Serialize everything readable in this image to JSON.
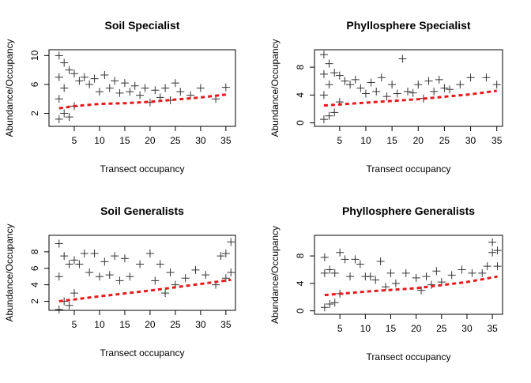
{
  "chart_data": [
    {
      "type": "scatter",
      "title": "Soil Specialist",
      "xlabel": "Transect occupancy",
      "ylabel": "Abundance/Occupancy",
      "color": "#000000",
      "x": [
        2,
        2,
        2,
        2,
        3,
        3,
        3,
        4,
        4,
        5,
        5,
        6,
        7,
        8,
        9,
        10,
        11,
        12,
        13,
        14,
        15,
        16,
        17,
        18,
        19,
        20,
        21,
        22,
        23,
        24,
        25,
        26,
        28,
        30,
        33,
        35
      ],
      "values": [
        10,
        1.2,
        7,
        4,
        9,
        2,
        5.5,
        8,
        1.5,
        7.5,
        3,
        6.5,
        7,
        6,
        6.8,
        5,
        7.3,
        5.5,
        6.5,
        4.8,
        6.2,
        5,
        5.8,
        4.5,
        5.5,
        3.5,
        5.2,
        4.2,
        5.5,
        3.8,
        6.2,
        5,
        4.5,
        5.5,
        4,
        5.6
      ],
      "trend": {
        "color": "#e41a1c",
        "x": [
          2,
          5,
          10,
          15,
          20,
          25,
          30,
          35
        ],
        "values": [
          2.7,
          3.0,
          3.3,
          3.4,
          3.6,
          3.9,
          4.2,
          4.6
        ]
      },
      "xlim": [
        0,
        36.9
      ],
      "ylim": [
        0.2,
        10.8
      ],
      "xticks": [
        5,
        10,
        15,
        20,
        25,
        30,
        35
      ],
      "yticks": [
        2,
        6,
        10
      ]
    },
    {
      "type": "scatter",
      "title": "Phyllosphere Specialist",
      "xlabel": "Transect occupancy",
      "ylabel": "Abundance/Occupancy",
      "color": "#000000",
      "x": [
        2,
        2,
        2,
        2,
        3,
        3,
        3,
        4,
        4,
        5,
        5,
        6,
        7,
        8,
        9,
        10,
        11,
        12,
        13,
        14,
        15,
        16,
        17,
        18,
        19,
        20,
        21,
        22,
        23,
        24,
        25,
        26,
        28,
        30,
        33,
        35
      ],
      "values": [
        9.8,
        0.5,
        7,
        4,
        8.5,
        1,
        5.5,
        7.2,
        1.5,
        6.8,
        3,
        6,
        5.5,
        6.2,
        5,
        4.2,
        5.8,
        4.5,
        6.5,
        3.8,
        5.5,
        4.2,
        9.2,
        4.5,
        4.3,
        5.5,
        3.5,
        6,
        4.5,
        6.2,
        5,
        4.8,
        5.5,
        6.5,
        6.5,
        5.5
      ],
      "trend": {
        "color": "#e41a1c",
        "x": [
          2,
          10,
          20,
          30,
          35
        ],
        "values": [
          2.5,
          2.9,
          3.4,
          4.1,
          4.6
        ]
      },
      "xlim": [
        0.2,
        36.1
      ],
      "ylim": [
        -0.5,
        10.5
      ],
      "xticks": [
        5,
        10,
        15,
        20,
        25,
        30,
        35
      ],
      "yticks": [
        0,
        4,
        8
      ]
    },
    {
      "type": "scatter",
      "title": "Soil Generalists",
      "xlabel": "Transect occupancy",
      "ylabel": "Abundance/Occupancy",
      "color": "#000000",
      "x": [
        2,
        2,
        2,
        3,
        3,
        4,
        4,
        5,
        5,
        6,
        7,
        8,
        9,
        10,
        11,
        12,
        13,
        14,
        15,
        16,
        18,
        20,
        21,
        22,
        23,
        24,
        25,
        27,
        29,
        31,
        33,
        34,
        35,
        35,
        36,
        36
      ],
      "values": [
        9,
        1,
        5,
        7.5,
        2,
        6.5,
        1.5,
        7,
        3,
        6.5,
        7.8,
        5.5,
        7.8,
        5,
        6.8,
        5.2,
        7.5,
        4.5,
        7.2,
        5,
        6.5,
        7.8,
        4.5,
        6.5,
        3,
        5.5,
        4,
        4.8,
        5.8,
        5.2,
        4,
        7.5,
        7.8,
        4.8,
        9.2,
        5.5
      ],
      "trend": {
        "color": "#e41a1c",
        "x": [
          2,
          10,
          20,
          30,
          36
        ],
        "values": [
          2.0,
          2.6,
          3.3,
          4.1,
          4.6
        ]
      },
      "xlim": [
        0,
        36.9
      ],
      "ylim": [
        0.9,
        10
      ],
      "xticks": [
        5,
        10,
        15,
        20,
        25,
        30,
        35
      ],
      "yticks": [
        2,
        4,
        6,
        8
      ]
    },
    {
      "type": "scatter",
      "title": "Phyllosphere Generalists",
      "xlabel": "Transect occupancy",
      "ylabel": "Abundance/Occupancy",
      "color": "#000000",
      "x": [
        2,
        2,
        2,
        3,
        3,
        4,
        4,
        5,
        5,
        6,
        7,
        8,
        9,
        10,
        11,
        12,
        13,
        14,
        15,
        16,
        18,
        20,
        21,
        22,
        23,
        24,
        25,
        27,
        29,
        31,
        33,
        34,
        35,
        35,
        36,
        36
      ],
      "values": [
        7.8,
        0.5,
        5.5,
        6,
        1,
        5.5,
        1.2,
        8.5,
        2.5,
        7.5,
        5,
        7.5,
        6.8,
        5,
        5,
        4.5,
        7.2,
        3.5,
        5.5,
        4,
        5.5,
        4.8,
        3,
        5,
        3.8,
        5.8,
        4.2,
        5.2,
        6,
        5.5,
        5.5,
        6.5,
        8.5,
        10,
        8.8,
        6.5
      ],
      "trend": {
        "color": "#e41a1c",
        "x": [
          2,
          10,
          20,
          30,
          36
        ],
        "values": [
          2.3,
          2.8,
          3.3,
          4.2,
          5.0
        ]
      },
      "xlim": [
        0,
        37
      ],
      "ylim": [
        -0.5,
        11
      ],
      "xticks": [
        5,
        10,
        15,
        20,
        25,
        30,
        35
      ],
      "yticks": [
        0,
        4,
        8
      ]
    }
  ]
}
